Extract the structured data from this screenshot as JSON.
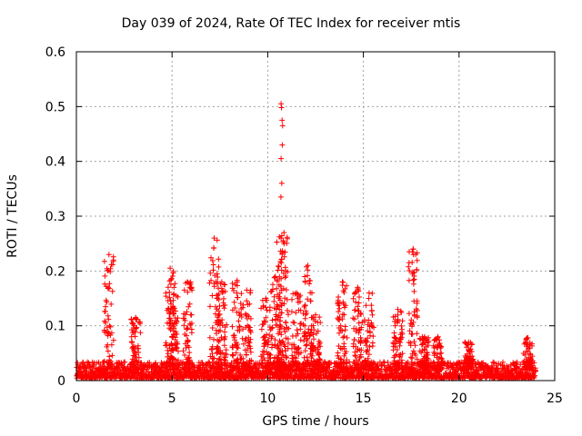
{
  "chart_data": {
    "type": "scatter",
    "title": "Day 039 of 2024, Rate Of TEC Index for receiver mtis",
    "xlabel": "GPS time / hours",
    "ylabel": "ROTI / TECUs",
    "xlim": [
      0,
      25
    ],
    "ylim": [
      0,
      0.6
    ],
    "xticks": [
      0,
      5,
      10,
      15,
      20,
      25
    ],
    "xtick_labels": [
      "0",
      "5",
      "10",
      "15",
      "20",
      "25"
    ],
    "yticks": [
      0,
      0.1,
      0.2,
      0.3,
      0.4,
      0.5,
      0.6
    ],
    "ytick_labels": [
      "0",
      "0.1",
      "0.2",
      "0.3",
      "0.4",
      "0.5",
      "0.6"
    ],
    "grid": true,
    "marker": "+",
    "series": [
      {
        "name": "ROTI",
        "color": "#ff0000",
        "background_band": {
          "x": [
            0,
            24.0
          ],
          "y": [
            0,
            0.03
          ]
        },
        "spikes": [
          {
            "x": 1.7,
            "max": 0.23
          },
          {
            "x": 3.1,
            "max": 0.115
          },
          {
            "x": 4.9,
            "max": 0.205
          },
          {
            "x": 5.1,
            "max": 0.17
          },
          {
            "x": 5.8,
            "max": 0.18
          },
          {
            "x": 7.2,
            "max": 0.26
          },
          {
            "x": 7.6,
            "max": 0.18
          },
          {
            "x": 8.4,
            "max": 0.18
          },
          {
            "x": 8.9,
            "max": 0.165
          },
          {
            "x": 9.9,
            "max": 0.15
          },
          {
            "x": 10.4,
            "max": 0.19
          },
          {
            "x": 10.7,
            "max": 0.26
          },
          {
            "x": 10.85,
            "max": 0.27
          },
          {
            "x": 11.5,
            "max": 0.16
          },
          {
            "x": 12.1,
            "max": 0.21
          },
          {
            "x": 12.5,
            "max": 0.12
          },
          {
            "x": 13.9,
            "max": 0.18
          },
          {
            "x": 14.7,
            "max": 0.17
          },
          {
            "x": 15.3,
            "max": 0.16
          },
          {
            "x": 16.8,
            "max": 0.13
          },
          {
            "x": 17.6,
            "max": 0.24
          },
          {
            "x": 18.2,
            "max": 0.08
          },
          {
            "x": 18.9,
            "max": 0.08
          },
          {
            "x": 20.5,
            "max": 0.07
          },
          {
            "x": 23.6,
            "max": 0.078
          }
        ],
        "points": [
          {
            "x": 10.7,
            "y": 0.505
          },
          {
            "x": 10.72,
            "y": 0.498
          },
          {
            "x": 10.75,
            "y": 0.475
          },
          {
            "x": 10.78,
            "y": 0.465
          },
          {
            "x": 10.76,
            "y": 0.43
          },
          {
            "x": 10.7,
            "y": 0.405
          },
          {
            "x": 10.73,
            "y": 0.36
          },
          {
            "x": 10.69,
            "y": 0.335
          },
          {
            "x": 17.6,
            "y": 0.24
          },
          {
            "x": 17.62,
            "y": 0.23
          },
          {
            "x": 17.58,
            "y": 0.198
          },
          {
            "x": 3.1,
            "y": 0.113
          },
          {
            "x": 8.4,
            "y": 0.183
          },
          {
            "x": 7.6,
            "y": 0.168
          }
        ]
      }
    ]
  }
}
